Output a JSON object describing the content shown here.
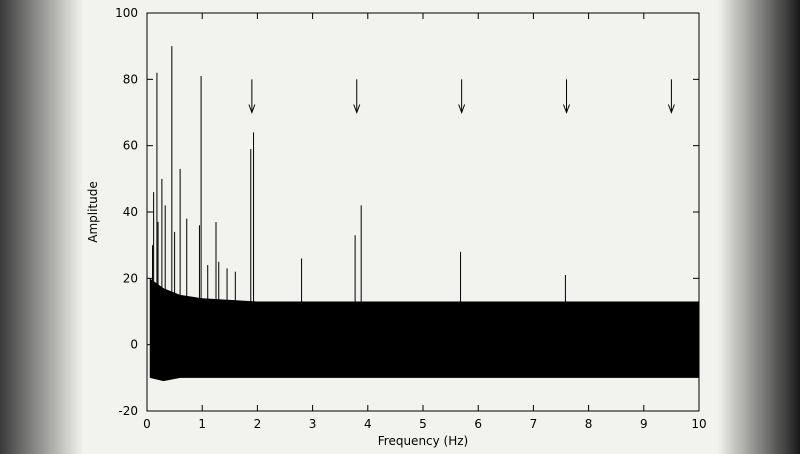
{
  "chart_data": {
    "type": "stem",
    "x_label": "Frequency (Hz)",
    "y_label": "Amplitude",
    "xlim": [
      0,
      10
    ],
    "ylim": [
      -20,
      100
    ],
    "xticks": [
      0,
      1,
      2,
      3,
      4,
      5,
      6,
      7,
      8,
      9,
      10
    ],
    "yticks": [
      -20,
      0,
      20,
      40,
      60,
      80,
      100
    ],
    "color": "#000000",
    "x": [
      0.1,
      0.12,
      0.18,
      0.2,
      0.27,
      0.33,
      0.45,
      0.5,
      0.6,
      0.72,
      0.95,
      0.98,
      1.1,
      1.25,
      1.3,
      1.45,
      1.6,
      1.88,
      1.93,
      2.8,
      3.77,
      3.88,
      5.68,
      7.58
    ],
    "values": [
      30,
      46,
      82,
      37,
      50,
      42,
      90,
      34,
      53,
      38,
      36,
      81,
      24,
      37,
      25,
      23,
      22,
      59,
      64,
      26,
      33,
      42,
      28,
      21
    ],
    "band": {
      "x": [
        0.05,
        0.3,
        0.6,
        1,
        2,
        3,
        4,
        5,
        6,
        7,
        8,
        9,
        10
      ],
      "upper": [
        20,
        17,
        15,
        14,
        13,
        13,
        13,
        13,
        13,
        13,
        13,
        13,
        13
      ],
      "lower": [
        -10,
        -11,
        -10,
        -10,
        -10,
        -10,
        -10,
        -10,
        -10,
        -10,
        -10,
        -10,
        -10
      ]
    },
    "arrows": {
      "x": [
        1.9,
        3.8,
        5.7,
        7.6,
        9.5
      ],
      "y_from": 80,
      "y_to": 70
    }
  }
}
